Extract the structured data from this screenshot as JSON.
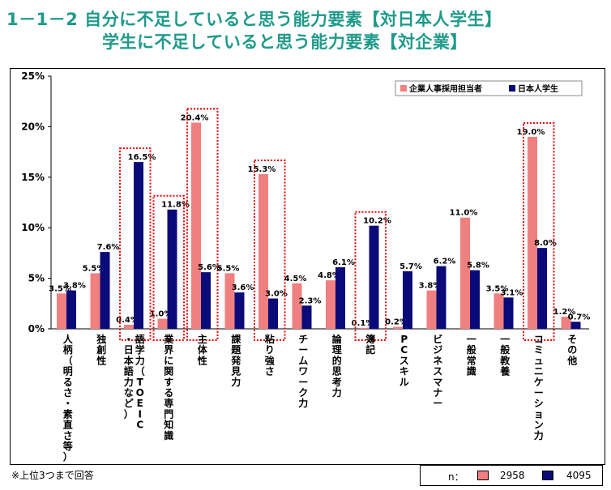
{
  "header": {
    "title_line1": "1－1－2 自分に不足していると思う能力要素【対日本人学生】",
    "title_line2": "学生に不足していると思う能力要素【対企業】"
  },
  "footnote": "※上位3つまで回答",
  "n_box": {
    "label": "n：",
    "values": [
      "2958",
      "4095"
    ]
  },
  "colors": {
    "series1": "#f08080",
    "series2": "#0a0a78",
    "highlight": "#e60000"
  },
  "chart_data": {
    "type": "bar",
    "ylim": [
      0,
      25
    ],
    "yticks": [
      "0%",
      "5%",
      "10%",
      "15%",
      "20%",
      "25%"
    ],
    "legend_position": "top-right",
    "categories": [
      "人柄（明るさ・素直さ等）",
      "独創性",
      "語学力（TOEIC・日本語力など）",
      "業界に関する専門知識",
      "主体性",
      "課題発見力",
      "粘り強さ",
      "チームワーク力",
      "論理的思考力",
      "簿記",
      "PCスキル",
      "ビジネスマナー",
      "一般常識",
      "一般教養",
      "コミュニケーション力",
      "その他"
    ],
    "series": [
      {
        "name": "企業人事採用担当者",
        "values": [
          3.5,
          5.5,
          0.4,
          1.0,
          20.4,
          5.5,
          15.3,
          4.5,
          4.8,
          0.1,
          0.2,
          3.8,
          11.0,
          3.5,
          19.0,
          1.2
        ],
        "labels": [
          "3.5%",
          "5.5%",
          "0.4%",
          "1.0%",
          "20.4%",
          "5.5%",
          "15.3%",
          "4.5%",
          "4.8%",
          "0.1%",
          "0.2%",
          "3.8%",
          "11.0%",
          "3.5%",
          "19.0%",
          "1.2%"
        ]
      },
      {
        "name": "日本人学生",
        "values": [
          3.8,
          7.6,
          16.5,
          11.8,
          5.6,
          3.6,
          3.0,
          2.3,
          6.1,
          10.2,
          5.7,
          6.2,
          5.8,
          3.1,
          8.0,
          0.7
        ],
        "labels": [
          "3.8%",
          "7.6%",
          "16.5%",
          "11.8%",
          "5.6%",
          "3.6%",
          "3.0%",
          "2.3%",
          "6.1%",
          "10.2%",
          "5.7%",
          "6.2%",
          "5.8%",
          "3.1%",
          "8.0%",
          "0.7%"
        ]
      }
    ],
    "highlighted": [
      2,
      3,
      4,
      6,
      9,
      14
    ]
  }
}
